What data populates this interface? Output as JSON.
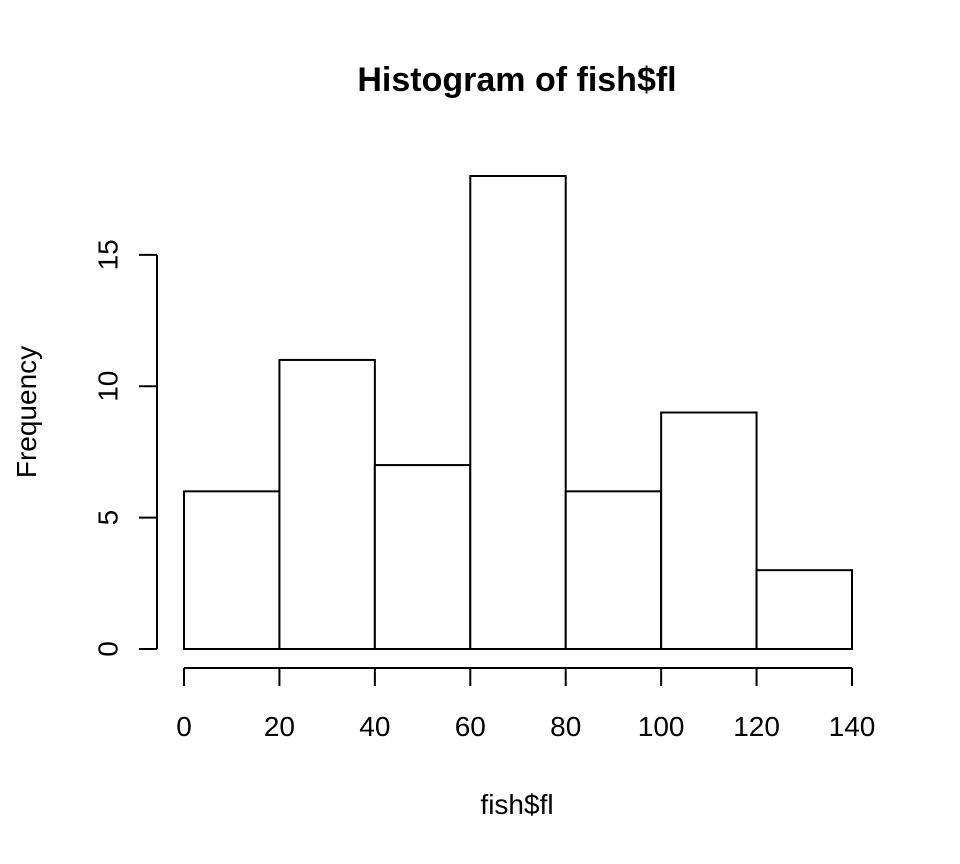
{
  "chart_data": {
    "type": "bar",
    "title": "Histogram of fish$fl",
    "xlabel": "fish$fl",
    "ylabel": "Frequency",
    "bins": [
      {
        "start": 0,
        "end": 20,
        "count": 6
      },
      {
        "start": 20,
        "end": 40,
        "count": 11
      },
      {
        "start": 40,
        "end": 60,
        "count": 7
      },
      {
        "start": 60,
        "end": 80,
        "count": 18
      },
      {
        "start": 80,
        "end": 100,
        "count": 6
      },
      {
        "start": 100,
        "end": 120,
        "count": 9
      },
      {
        "start": 120,
        "end": 140,
        "count": 3
      }
    ],
    "x_ticks": [
      0,
      20,
      40,
      60,
      80,
      100,
      120,
      140
    ],
    "y_ticks": [
      0,
      5,
      10,
      15
    ],
    "xlim": [
      0,
      140
    ],
    "ylim": [
      0,
      18
    ],
    "grid": false,
    "colors": {
      "bar_fill": "#ffffff",
      "bar_stroke": "#000000"
    }
  }
}
